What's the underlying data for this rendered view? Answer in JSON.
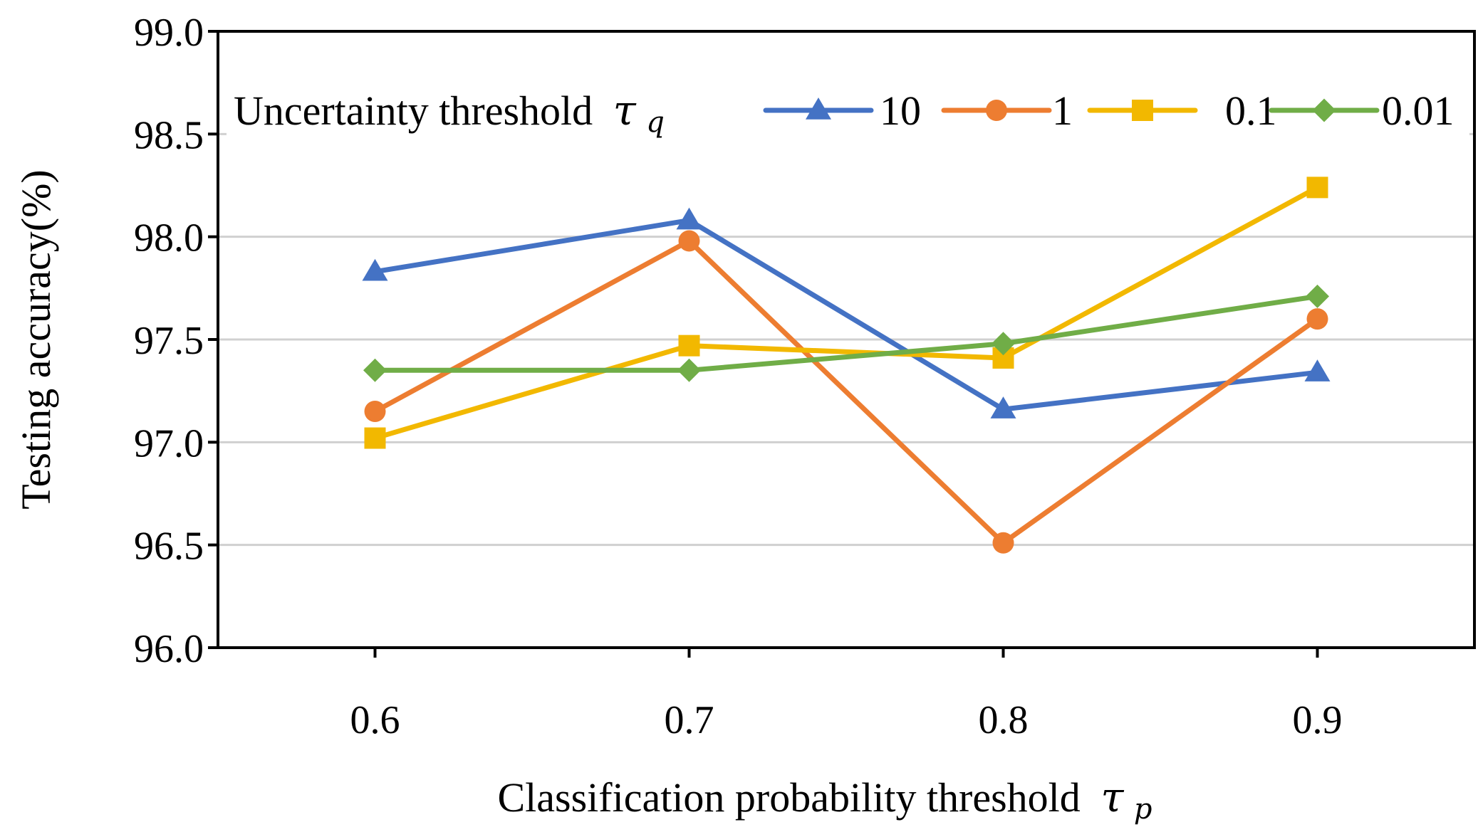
{
  "chart_data": {
    "type": "line",
    "x": [
      0.6,
      0.7,
      0.8,
      0.9
    ],
    "x_tick_labels": [
      "0.6",
      "0.7",
      "0.8",
      "0.9"
    ],
    "xlim": [
      0.55,
      0.95
    ],
    "ylim": [
      96.0,
      99.0
    ],
    "y_ticks": [
      96.0,
      96.5,
      97.0,
      97.5,
      98.0,
      98.5,
      99.0
    ],
    "y_tick_labels": [
      "96.0",
      "96.5",
      "97.0",
      "97.5",
      "98.0",
      "98.5",
      "99.0"
    ],
    "grid": "horizontal",
    "xlabel": "Classification probability threshold",
    "xlabel_symbol": "τ",
    "xlabel_subscript": "p",
    "ylabel": "Testing accuracy(%)",
    "legend": {
      "title": "Uncertainty threshold",
      "title_symbol": "τ",
      "title_subscript": "q",
      "placement": "top-inside"
    },
    "series": [
      {
        "name": "10",
        "color": "#4472C4",
        "marker": "triangle",
        "values": [
          97.83,
          98.08,
          97.16,
          97.34
        ]
      },
      {
        "name": "1",
        "color": "#ED7D31",
        "marker": "circle",
        "values": [
          97.15,
          97.98,
          96.51,
          97.6
        ]
      },
      {
        "name": "0.1",
        "color": "#F2B800",
        "marker": "square",
        "values": [
          97.02,
          97.47,
          97.41,
          98.24
        ]
      },
      {
        "name": "0.01",
        "color": "#70AD47",
        "marker": "diamond",
        "values": [
          97.35,
          97.35,
          97.48,
          97.71
        ]
      }
    ]
  }
}
